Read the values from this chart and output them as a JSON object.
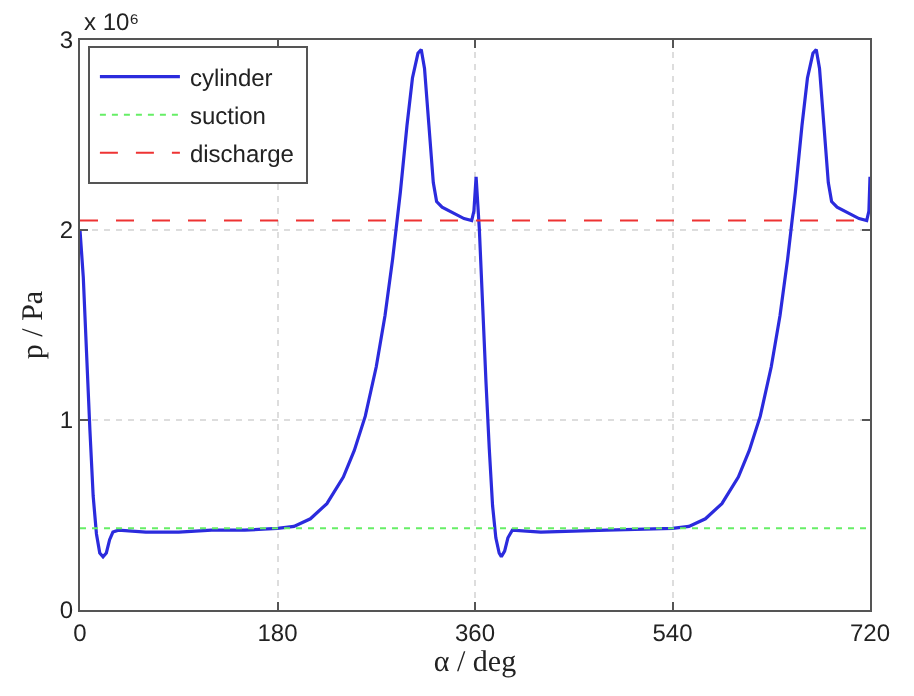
{
  "chart_data": {
    "type": "line",
    "xlabel": "α / deg",
    "ylabel": "p / Pa",
    "annotations": [
      "x 10⁶"
    ],
    "xlim": [
      0,
      720
    ],
    "xticks": [
      0,
      180,
      360,
      540,
      720
    ],
    "ylim": [
      0,
      3
    ],
    "yticks": [
      0,
      1,
      2,
      3
    ],
    "grid": true,
    "legend": "top left",
    "series": [
      {
        "name": "cylinder",
        "color": "#2b2bdd",
        "line_style": "solid",
        "x": [
          0,
          3,
          6,
          9,
          12,
          15,
          18,
          21,
          24,
          27,
          30,
          35,
          60,
          90,
          120,
          150,
          180,
          195,
          210,
          225,
          240,
          250,
          260,
          270,
          278,
          285,
          292,
          298,
          303,
          308,
          311,
          314,
          318,
          322,
          325,
          330,
          340,
          350,
          357,
          359,
          361,
          364,
          367,
          370,
          373,
          376,
          379,
          382,
          384,
          387,
          390,
          394,
          420,
          480,
          540,
          555,
          570,
          585,
          600,
          610,
          620,
          630,
          638,
          645,
          652,
          658,
          663,
          668,
          671,
          674,
          678,
          682,
          685,
          690,
          700,
          710,
          717,
          719,
          720
        ],
        "values": [
          2.0,
          1.75,
          1.35,
          0.95,
          0.6,
          0.4,
          0.3,
          0.28,
          0.3,
          0.37,
          0.41,
          0.42,
          0.41,
          0.41,
          0.42,
          0.42,
          0.43,
          0.44,
          0.48,
          0.56,
          0.7,
          0.84,
          1.02,
          1.28,
          1.55,
          1.85,
          2.2,
          2.55,
          2.8,
          2.93,
          2.95,
          2.85,
          2.55,
          2.25,
          2.15,
          2.12,
          2.09,
          2.06,
          2.05,
          2.1,
          2.28,
          2.0,
          1.6,
          1.2,
          0.85,
          0.55,
          0.38,
          0.3,
          0.28,
          0.31,
          0.38,
          0.42,
          0.41,
          0.42,
          0.43,
          0.44,
          0.48,
          0.56,
          0.7,
          0.84,
          1.02,
          1.28,
          1.55,
          1.85,
          2.2,
          2.55,
          2.8,
          2.93,
          2.95,
          2.85,
          2.55,
          2.25,
          2.15,
          2.12,
          2.09,
          2.06,
          2.05,
          2.1,
          2.28
        ]
      },
      {
        "name": "suction",
        "color": "#66ee66",
        "line_style": "dotted",
        "x": [
          0,
          720
        ],
        "values": [
          0.43,
          0.43
        ]
      },
      {
        "name": "discharge",
        "color": "#ee3333",
        "line_style": "dashed",
        "x": [
          0,
          720
        ],
        "values": [
          2.05,
          2.05
        ]
      }
    ]
  }
}
